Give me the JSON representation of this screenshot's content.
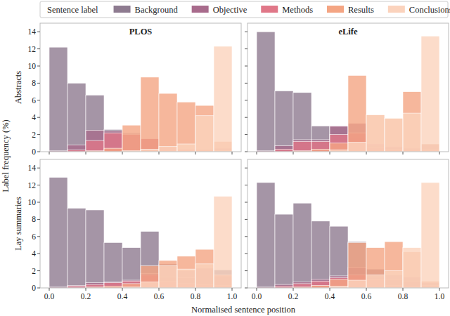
{
  "legend_title": "Sentence label",
  "y_label": "Label frequency (%)",
  "x_label": "Normalised sentence position",
  "columns": [
    "PLOS",
    "eLife"
  ],
  "rows": [
    "Abstracts",
    "Lay summaries"
  ],
  "chart_data": [
    {
      "type": "histogram",
      "tick_labels": "y",
      "bins": [
        0,
        0.1,
        0.2,
        0.3,
        0.4,
        0.5,
        0.6,
        0.7,
        0.8,
        0.9,
        1.0
      ],
      "xlim": [
        -0.05,
        1.05
      ],
      "ylim": [
        0,
        15
      ],
      "xticks": [
        {
          "value": 0,
          "label": "0.0"
        },
        0.2,
        0.4,
        0.6,
        0.8,
        {
          "value": 1,
          "label": "1.0"
        }
      ],
      "yticks": [
        0,
        2,
        4,
        6,
        8,
        10,
        12,
        14
      ],
      "series": [
        {
          "name": "Background",
          "color": "#8e7b90",
          "values": [
            12.2,
            8.0,
            6.6,
            2.6,
            2.2,
            1.5,
            0.5,
            0.3,
            0.3,
            0.4
          ]
        },
        {
          "name": "Objective",
          "color": "#a86b8c",
          "values": [
            0.1,
            0.8,
            2.5,
            2.4,
            2.1,
            1.5,
            0.6,
            0.2,
            0.1,
            0.1
          ]
        },
        {
          "name": "Methods",
          "color": "#e07788",
          "values": [
            0,
            0.2,
            1.3,
            2.2,
            2.0,
            1.5,
            0.5,
            0.3,
            0.2,
            0.1
          ]
        },
        {
          "name": "Results",
          "color": "#f4a583",
          "values": [
            0,
            0,
            0.1,
            0.4,
            3.1,
            8.7,
            6.8,
            5.8,
            5.4,
            1.2
          ]
        },
        {
          "name": "Conclusions",
          "color": "#fbd3bd",
          "values": [
            0,
            0,
            0,
            0,
            0.1,
            0.3,
            0.6,
            0.9,
            4.2,
            12.3
          ]
        }
      ]
    },
    {
      "type": "histogram",
      "tick_labels": false,
      "bins": [
        0,
        0.1,
        0.2,
        0.3,
        0.4,
        0.5,
        0.6,
        0.7,
        0.8,
        0.9,
        1.0
      ],
      "xlim": [
        -0.05,
        1.05
      ],
      "ylim": [
        0,
        15
      ],
      "xticks": [
        {
          "value": 0,
          "label": "0.0"
        },
        0.2,
        0.4,
        0.6,
        0.8,
        {
          "value": 1,
          "label": "1.0"
        }
      ],
      "yticks": [
        0,
        2,
        4,
        6,
        8,
        10,
        12,
        14
      ],
      "series": [
        {
          "name": "Background",
          "color": "#8e7b90",
          "values": [
            14.0,
            7.1,
            6.9,
            3.0,
            2.9,
            1.6,
            0.6,
            0.4,
            0.3,
            0.9
          ]
        },
        {
          "name": "Objective",
          "color": "#a86b8c",
          "values": [
            0.1,
            0.7,
            1.4,
            1.4,
            3.0,
            3.3,
            0.9,
            0.6,
            0.4,
            0.3
          ]
        },
        {
          "name": "Methods",
          "color": "#e07788",
          "values": [
            0,
            0.3,
            1.2,
            1.2,
            2.0,
            2.2,
            0.5,
            0.3,
            0.2,
            0.1
          ]
        },
        {
          "name": "Results",
          "color": "#f4a583",
          "values": [
            0,
            0,
            0.1,
            0.3,
            1.0,
            8.9,
            4.3,
            3.9,
            7.0,
            0.9
          ]
        },
        {
          "name": "Conclusions",
          "color": "#fbd3bd",
          "values": [
            0,
            0,
            0,
            0,
            0.2,
            1.1,
            4.3,
            3.9,
            4.5,
            13.5
          ]
        }
      ]
    },
    {
      "type": "histogram",
      "bins": [
        0,
        0.1,
        0.2,
        0.3,
        0.4,
        0.5,
        0.6,
        0.7,
        0.8,
        0.9,
        1.0
      ],
      "xlim": [
        -0.05,
        1.05
      ],
      "ylim": [
        0,
        15
      ],
      "xticks": [
        {
          "value": 0,
          "label": "0.0"
        },
        0.2,
        0.4,
        0.6,
        0.8,
        {
          "value": 1,
          "label": "1.0"
        }
      ],
      "yticks": [
        0,
        2,
        4,
        6,
        8,
        10,
        12,
        14
      ],
      "series": [
        {
          "name": "Background",
          "color": "#8e7b90",
          "values": [
            12.9,
            9.3,
            9.1,
            5.3,
            4.7,
            6.6,
            2.8,
            2.0,
            2.3,
            2.1
          ]
        },
        {
          "name": "Objective",
          "color": "#a86b8c",
          "values": [
            0.1,
            0.3,
            0.6,
            0.7,
            0.9,
            1.7,
            1.3,
            1.2,
            2.3,
            1.4
          ]
        },
        {
          "name": "Methods",
          "color": "#e07788",
          "values": [
            0,
            0.2,
            0.4,
            0.6,
            0.8,
            1.5,
            0.8,
            0.5,
            0.4,
            0.3
          ]
        },
        {
          "name": "Results",
          "color": "#f4a583",
          "values": [
            0,
            0,
            0.1,
            0.2,
            0.5,
            2.6,
            3.2,
            3.7,
            4.5,
            1.5
          ]
        },
        {
          "name": "Conclusions",
          "color": "#fbd3bd",
          "values": [
            0,
            0,
            0,
            0,
            0.1,
            0.7,
            2.6,
            2.2,
            2.8,
            10.7
          ]
        }
      ]
    },
    {
      "type": "histogram",
      "tick_labels": "x",
      "bins": [
        0,
        0.1,
        0.2,
        0.3,
        0.4,
        0.5,
        0.6,
        0.7,
        0.8,
        0.9,
        1.0
      ],
      "xlim": [
        -0.05,
        1.05
      ],
      "ylim": [
        0,
        15
      ],
      "xticks": [
        {
          "value": 0,
          "label": "0.0"
        },
        0.2,
        0.4,
        0.6,
        0.8,
        {
          "value": 1,
          "label": "1.0"
        }
      ],
      "yticks": [
        0,
        2,
        4,
        6,
        8,
        10,
        12,
        14
      ],
      "series": [
        {
          "name": "Background",
          "color": "#8e7b90",
          "values": [
            12.3,
            8.6,
            9.9,
            7.8,
            7.2,
            5.4,
            2.2,
            1.5,
            1.3,
            0.6
          ]
        },
        {
          "name": "Objective",
          "color": "#a86b8c",
          "values": [
            0.1,
            0.4,
            0.7,
            1.0,
            1.4,
            2.4,
            1.3,
            1.0,
            0.8,
            0.3
          ]
        },
        {
          "name": "Methods",
          "color": "#e07788",
          "values": [
            0,
            0.2,
            0.5,
            0.8,
            1.2,
            1.5,
            1.0,
            0.3,
            0.2,
            0.1
          ]
        },
        {
          "name": "Results",
          "color": "#f4a583",
          "values": [
            0,
            0,
            0.1,
            0.3,
            1.0,
            5.3,
            4.7,
            5.4,
            4.2,
            0.8
          ]
        },
        {
          "name": "Conclusions",
          "color": "#fbd3bd",
          "values": [
            0,
            0,
            0,
            0,
            0.2,
            0.9,
            1.5,
            2.0,
            4.7,
            12.3
          ]
        }
      ]
    }
  ]
}
